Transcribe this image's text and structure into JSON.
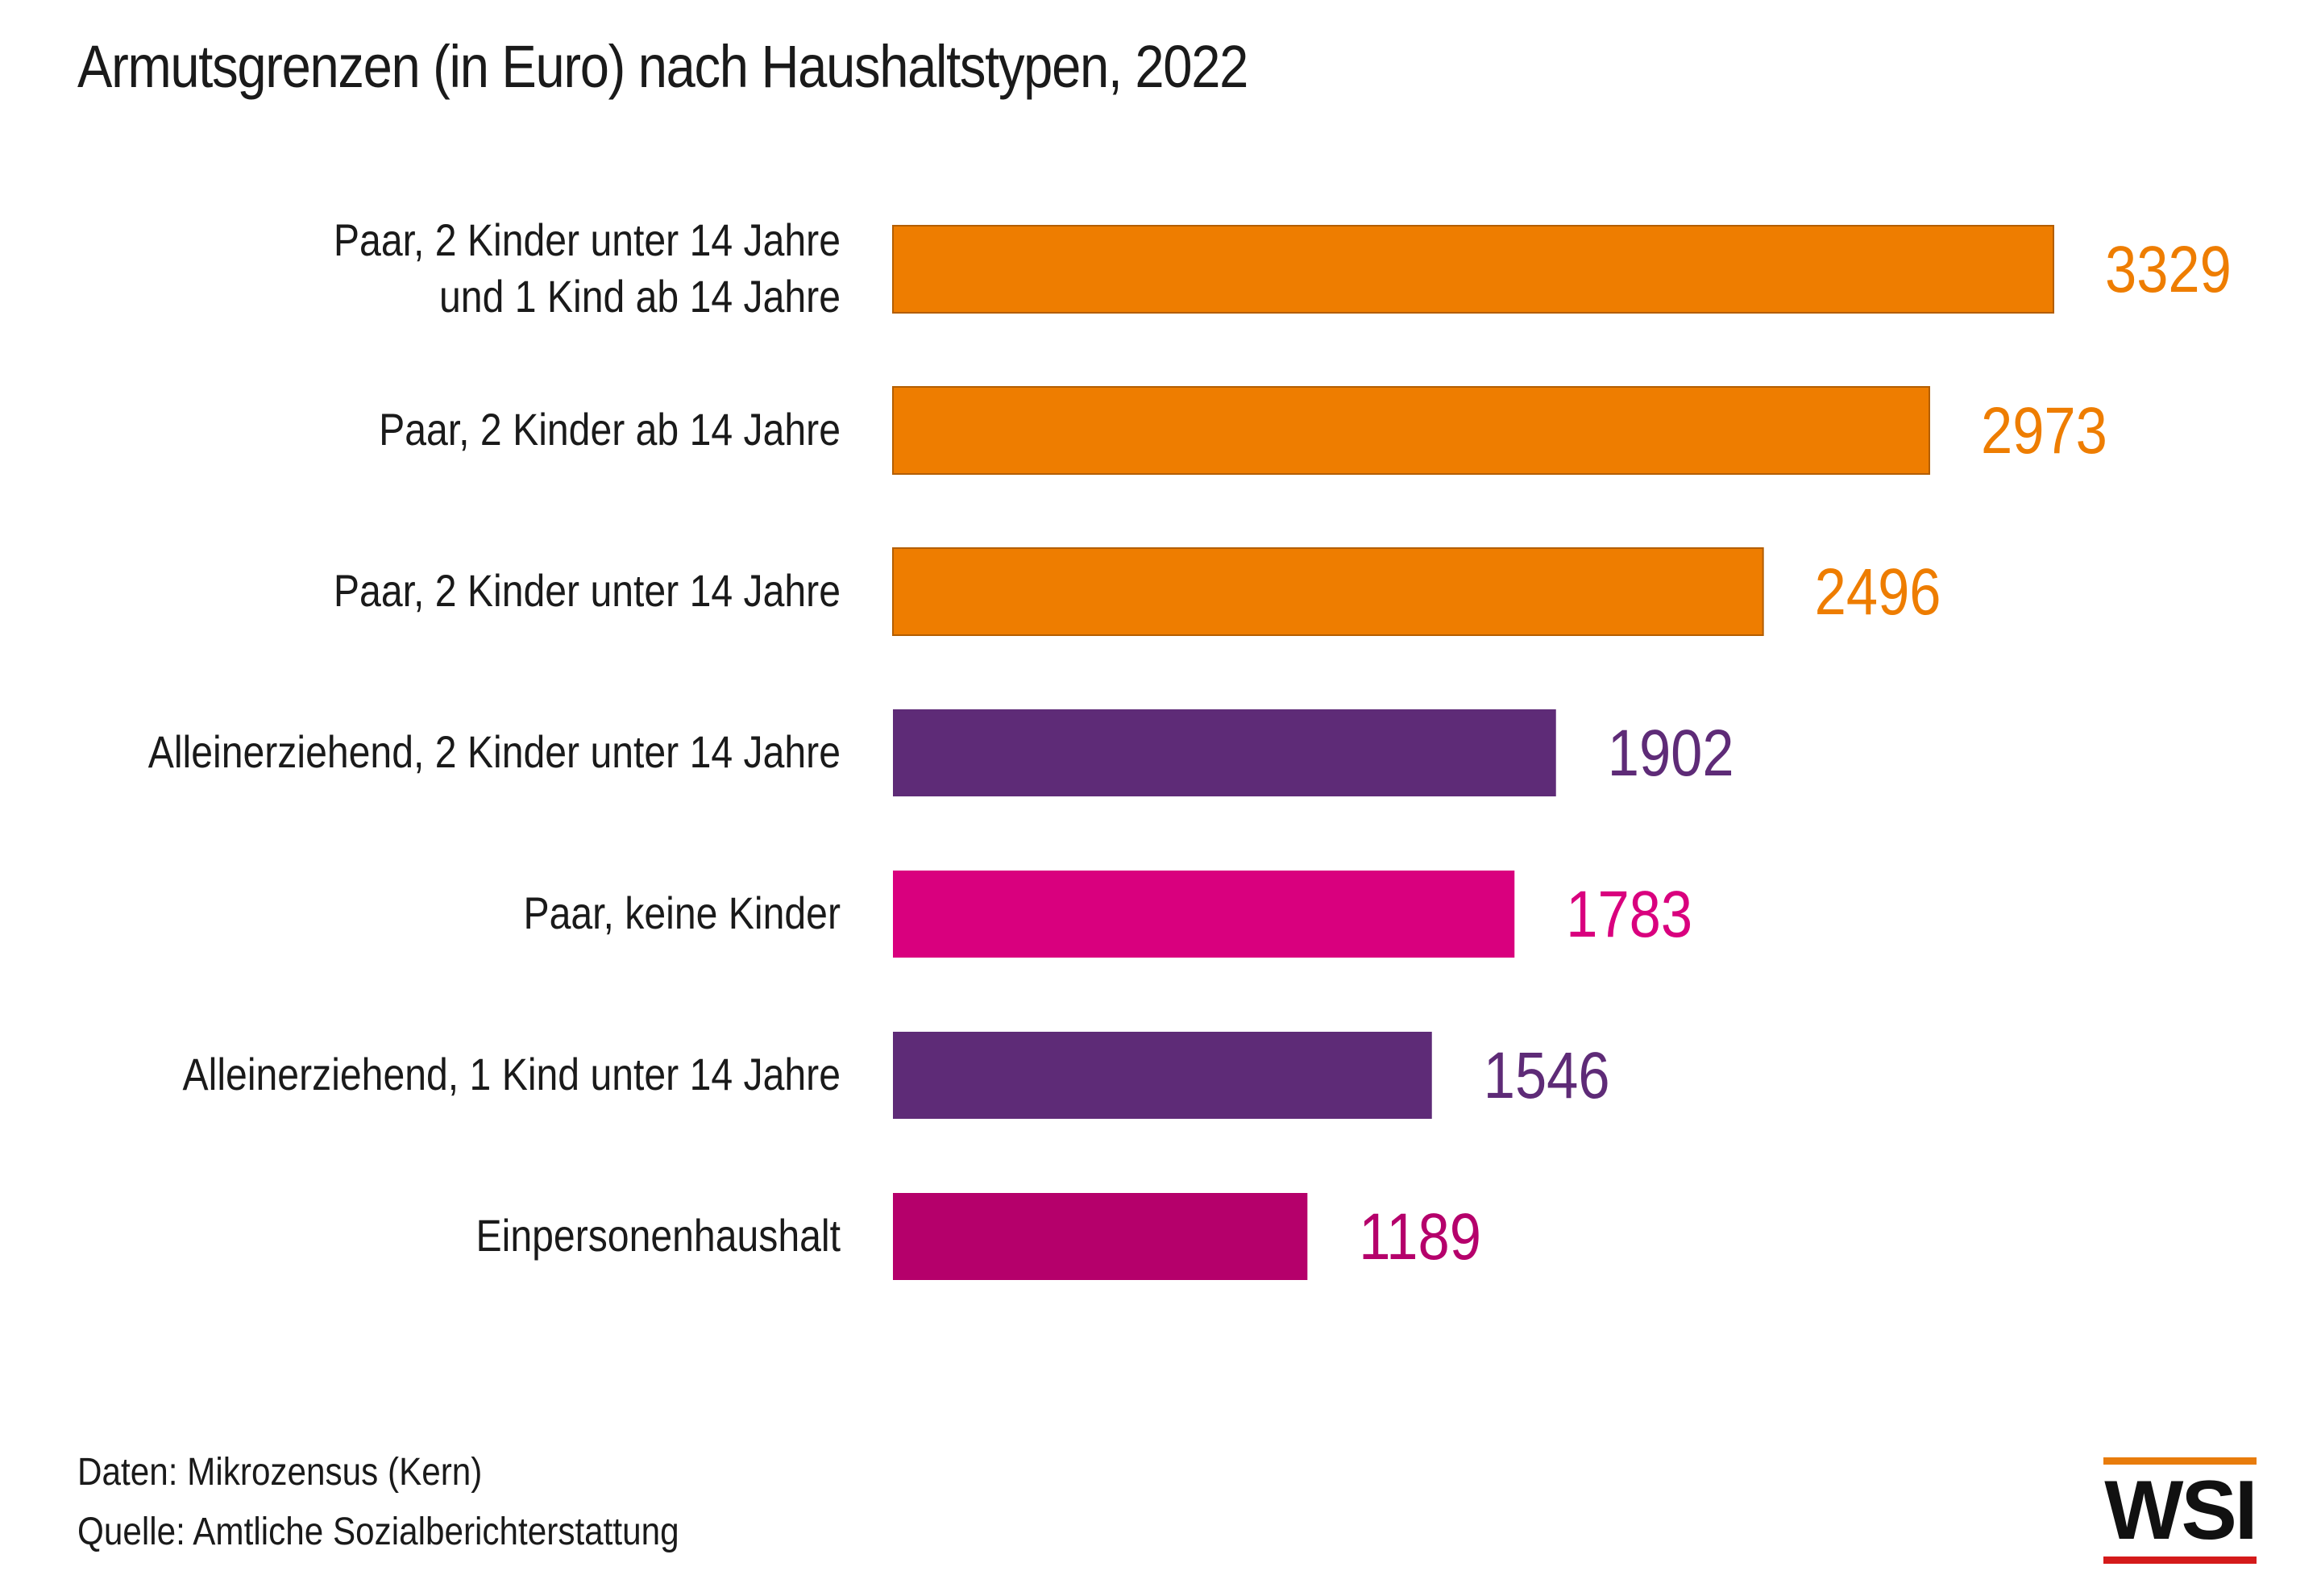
{
  "title": "Armutsgrenzen (in Euro) nach Haushaltstypen, 2022",
  "footer": {
    "data": "Daten: Mikrozensus (Kern)",
    "source": "Quelle: Amtliche Sozialberichterstattung"
  },
  "logo": {
    "text": "WSI",
    "top_color": "#E87C0C",
    "bottom_color": "#D41A1A"
  },
  "chart_data": {
    "type": "bar",
    "orientation": "horizontal",
    "title": "Armutsgrenzen (in Euro) nach Haushaltstypen, 2022",
    "categories": [
      [
        "Paar, 2 Kinder unter 14 Jahre",
        "und 1 Kind ab 14 Jahre"
      ],
      [
        "Paar, 2 Kinder ab 14 Jahre"
      ],
      [
        "Paar, 2 Kinder unter 14 Jahre"
      ],
      [
        "Alleinerziehend, 2 Kinder unter 14 Jahre"
      ],
      [
        "Paar, keine Kinder"
      ],
      [
        "Alleinerziehend, 1 Kind unter 14 Jahre"
      ],
      [
        "Einpersonenhaushalt"
      ]
    ],
    "values": [
      3329,
      2973,
      2496,
      1902,
      1783,
      1546,
      1189
    ],
    "colors": [
      "#EE7D00",
      "#EE7D00",
      "#EE7D00",
      "#5E2B77",
      "#D9007E",
      "#5E2B77",
      "#B5006B"
    ],
    "label_colors": [
      "#EE7D00",
      "#EE7D00",
      "#EE7D00",
      "#5E2B77",
      "#D9007E",
      "#5E2B77",
      "#B5006B"
    ],
    "xlim": [
      0,
      3329
    ],
    "grid": false,
    "legend": "none",
    "data_labels": true
  }
}
